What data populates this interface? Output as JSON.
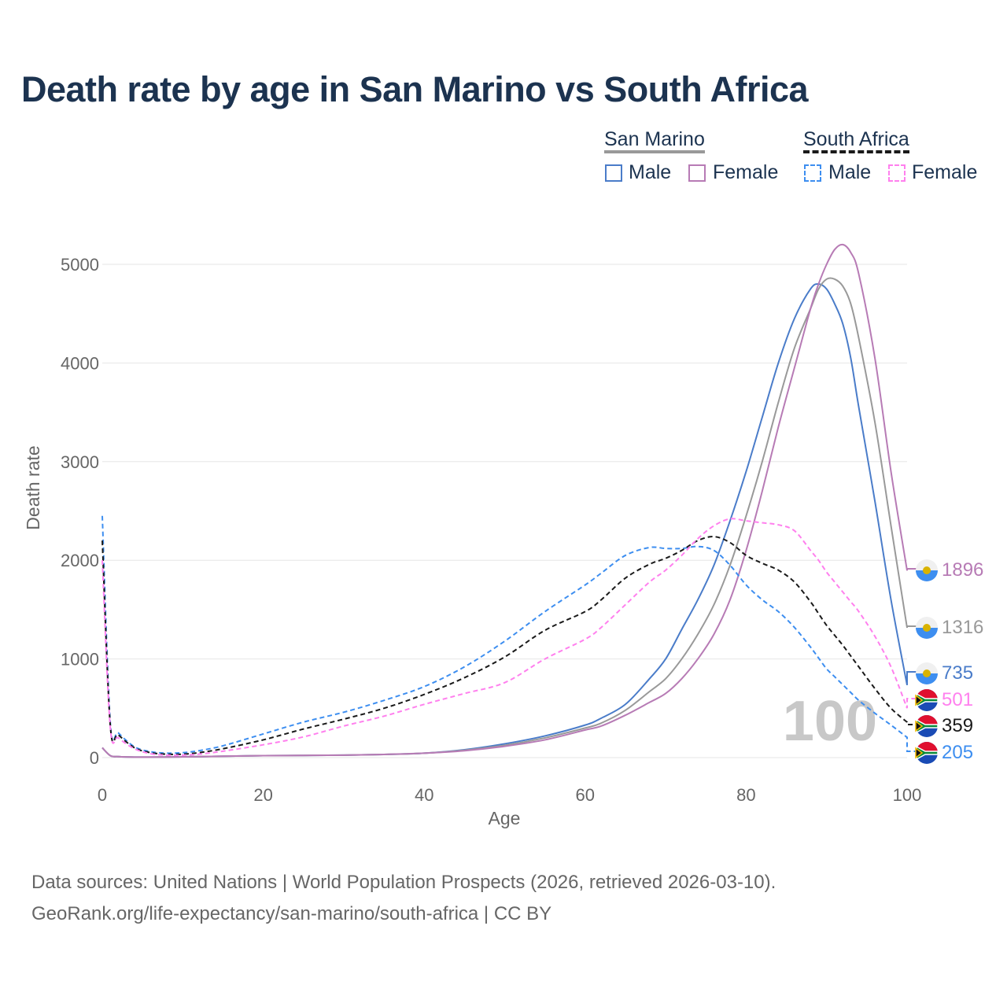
{
  "title": "Death rate by age in San Marino vs South Africa",
  "legend": {
    "group1": "San Marino",
    "group2": "South Africa",
    "male": "Male",
    "female": "Female"
  },
  "source_line1": "Data sources: United Nations | World Population Prospects (2026, retrieved 2026-03-10).",
  "source_line2": "GeoRank.org/life-expectancy/san-marino/south-africa | CC BY",
  "chart_data": {
    "type": "line",
    "xlabel": "Age",
    "ylabel": "Death rate",
    "xlim": [
      0,
      100
    ],
    "ylim": [
      0,
      5000
    ],
    "xticks": [
      0,
      20,
      40,
      60,
      80,
      100
    ],
    "yticks": [
      0,
      1000,
      2000,
      3000,
      4000,
      5000
    ],
    "watermark": "100",
    "x": [
      0,
      1,
      2,
      4,
      6,
      8,
      10,
      12,
      15,
      20,
      25,
      30,
      35,
      40,
      45,
      50,
      55,
      60,
      62,
      65,
      68,
      70,
      72,
      74,
      76,
      78,
      80,
      82,
      84,
      86,
      88,
      89,
      90,
      91,
      92,
      93,
      94,
      96,
      98,
      100
    ],
    "series": [
      {
        "name": "San Marino Male",
        "color": "#4a7cc9",
        "dash": false,
        "end_label": "735",
        "flag": "sm",
        "values": [
          100,
          20,
          10,
          5,
          5,
          6,
          8,
          10,
          14,
          20,
          22,
          25,
          32,
          45,
          80,
          140,
          220,
          330,
          400,
          540,
          800,
          1000,
          1300,
          1600,
          1950,
          2400,
          2900,
          3450,
          4000,
          4450,
          4750,
          4800,
          4750,
          4600,
          4400,
          4050,
          3550,
          2600,
          1600,
          735
        ]
      },
      {
        "name": "San Marino Total",
        "color": "#999999",
        "dash": false,
        "end_label": "1316",
        "flag": "sm",
        "values": [
          100,
          20,
          10,
          5,
          5,
          6,
          8,
          10,
          14,
          20,
          22,
          25,
          32,
          45,
          75,
          125,
          200,
          300,
          350,
          480,
          670,
          800,
          1000,
          1250,
          1550,
          1950,
          2450,
          3000,
          3600,
          4150,
          4550,
          4750,
          4850,
          4850,
          4780,
          4600,
          4250,
          3400,
          2350,
          1316
        ]
      },
      {
        "name": "San Marino Female",
        "color": "#b77bb5",
        "dash": false,
        "end_label": "1896",
        "flag": "sm",
        "values": [
          100,
          20,
          10,
          5,
          5,
          6,
          8,
          10,
          14,
          20,
          22,
          25,
          32,
          45,
          70,
          115,
          180,
          280,
          320,
          430,
          560,
          650,
          800,
          1000,
          1250,
          1600,
          2100,
          2700,
          3350,
          3950,
          4550,
          4800,
          5000,
          5150,
          5200,
          5120,
          4900,
          4050,
          2900,
          1896
        ]
      },
      {
        "name": "South Africa Male",
        "color": "#3d8ef0",
        "dash": true,
        "end_label": "205",
        "flag": "za",
        "values": [
          2450,
          350,
          250,
          110,
          60,
          45,
          50,
          70,
          120,
          240,
          360,
          460,
          580,
          720,
          920,
          1180,
          1480,
          1750,
          1870,
          2050,
          2130,
          2120,
          2120,
          2140,
          2100,
          1950,
          1750,
          1600,
          1480,
          1320,
          1120,
          1010,
          900,
          820,
          740,
          660,
          580,
          450,
          330,
          205
        ]
      },
      {
        "name": "South Africa Total",
        "color": "#1a1a1a",
        "dash": true,
        "end_label": "359",
        "flag": "za",
        "values": [
          2200,
          320,
          230,
          100,
          50,
          35,
          35,
          50,
          90,
          180,
          290,
          390,
          500,
          640,
          810,
          1020,
          1290,
          1480,
          1600,
          1820,
          1960,
          2020,
          2100,
          2200,
          2240,
          2180,
          2050,
          1970,
          1900,
          1780,
          1580,
          1460,
          1340,
          1240,
          1140,
          1030,
          920,
          700,
          500,
          359
        ]
      },
      {
        "name": "South Africa Female",
        "color": "#ff80ee",
        "dash": true,
        "end_label": "501",
        "flag": "za",
        "values": [
          2000,
          300,
          200,
          90,
          40,
          25,
          25,
          35,
          65,
          130,
          210,
          320,
          420,
          540,
          650,
          760,
          1000,
          1200,
          1320,
          1550,
          1780,
          1900,
          2050,
          2220,
          2350,
          2420,
          2400,
          2380,
          2360,
          2300,
          2100,
          2000,
          1880,
          1780,
          1680,
          1580,
          1480,
          1230,
          920,
          501
        ]
      }
    ]
  }
}
